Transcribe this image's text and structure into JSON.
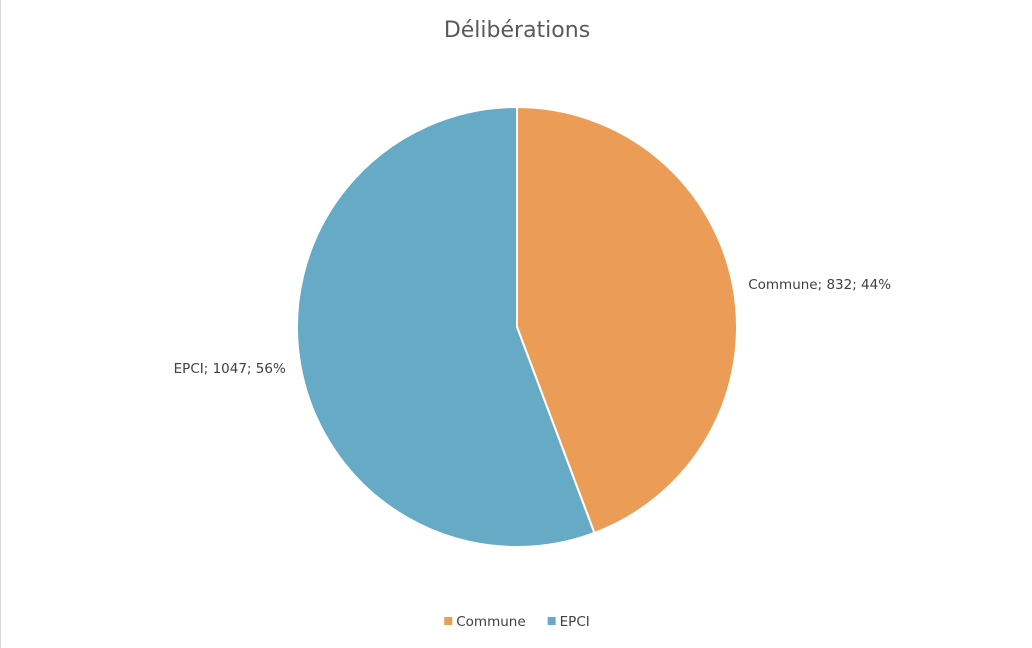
{
  "chart_data": {
    "type": "pie",
    "title": "Délibérations",
    "categories": [
      "Commune",
      "EPCI"
    ],
    "values": [
      832,
      1047
    ],
    "value_labels": [
      "Commune; 832; 44%",
      "EPCI; 1047; 56%"
    ],
    "colors": [
      "#eb9c57",
      "#66aac5"
    ],
    "legend": "bottom"
  }
}
